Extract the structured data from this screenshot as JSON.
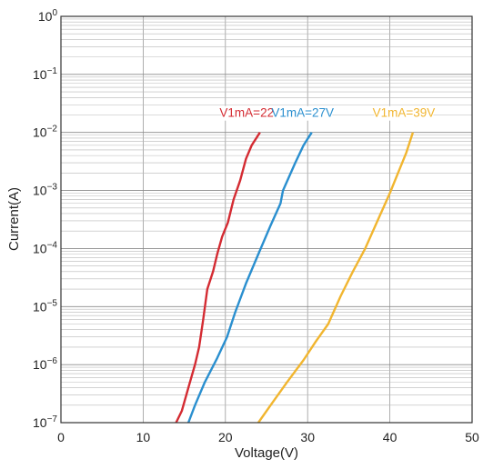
{
  "chart_data": {
    "type": "line",
    "title": "",
    "xlabel": "Voltage(V)",
    "ylabel": "Current(A)",
    "xlim": [
      0,
      50
    ],
    "ylim": [
      1e-07,
      1
    ],
    "y_scale": "log",
    "grid": true,
    "x_ticks": [
      "0",
      "10",
      "20",
      "30",
      "40",
      "50"
    ],
    "y_ticks": [
      {
        "base": "10",
        "exp": "0"
      },
      {
        "base": "10",
        "exp": "−1"
      },
      {
        "base": "10",
        "exp": "−2"
      },
      {
        "base": "10",
        "exp": "−3"
      },
      {
        "base": "10",
        "exp": "−4"
      },
      {
        "base": "10",
        "exp": "−5"
      },
      {
        "base": "10",
        "exp": "−6"
      },
      {
        "base": "10",
        "exp": "−7"
      }
    ],
    "series": [
      {
        "name": "V1mA=22V",
        "color": "#d42b32",
        "points": [
          [
            14.0,
            1e-07
          ],
          [
            14.7,
            1.6e-07
          ],
          [
            15.5,
            4e-07
          ],
          [
            16.3,
            1e-06
          ],
          [
            16.8,
            2e-06
          ],
          [
            17.3,
            6e-06
          ],
          [
            17.8,
            2e-05
          ],
          [
            18.5,
            4e-05
          ],
          [
            19.0,
            8e-05
          ],
          [
            19.6,
            0.00016
          ],
          [
            20.3,
            0.00028
          ],
          [
            21.0,
            0.0007
          ],
          [
            21.8,
            0.0015
          ],
          [
            22.5,
            0.0035
          ],
          [
            23.2,
            0.006
          ],
          [
            24.2,
            0.01
          ]
        ]
      },
      {
        "name": "V1mA=27V",
        "color": "#2a8fcf",
        "points": [
          [
            15.5,
            1e-07
          ],
          [
            16.3,
            2e-07
          ],
          [
            17.5,
            5e-07
          ],
          [
            19.0,
            1.3e-06
          ],
          [
            20.2,
            3e-06
          ],
          [
            21.2,
            8e-06
          ],
          [
            22.5,
            2.5e-05
          ],
          [
            24.0,
            8e-05
          ],
          [
            25.5,
            0.00025
          ],
          [
            26.7,
            0.0006
          ],
          [
            27.0,
            0.001
          ],
          [
            28.5,
            0.003
          ],
          [
            29.5,
            0.006
          ],
          [
            30.5,
            0.01
          ]
        ]
      },
      {
        "name": "V1mA=39V",
        "color": "#f1b52f",
        "points": [
          [
            24.0,
            1e-07
          ],
          [
            25.5,
            2e-07
          ],
          [
            27.5,
            5e-07
          ],
          [
            29.5,
            1.2e-06
          ],
          [
            31.0,
            2.5e-06
          ],
          [
            32.5,
            5e-06
          ],
          [
            34.0,
            1.5e-05
          ],
          [
            35.5,
            4e-05
          ],
          [
            37.0,
            0.0001
          ],
          [
            38.5,
            0.0003
          ],
          [
            40.0,
            0.0009
          ],
          [
            41.0,
            0.002
          ],
          [
            42.0,
            0.0045
          ],
          [
            42.8,
            0.01
          ]
        ]
      }
    ]
  }
}
